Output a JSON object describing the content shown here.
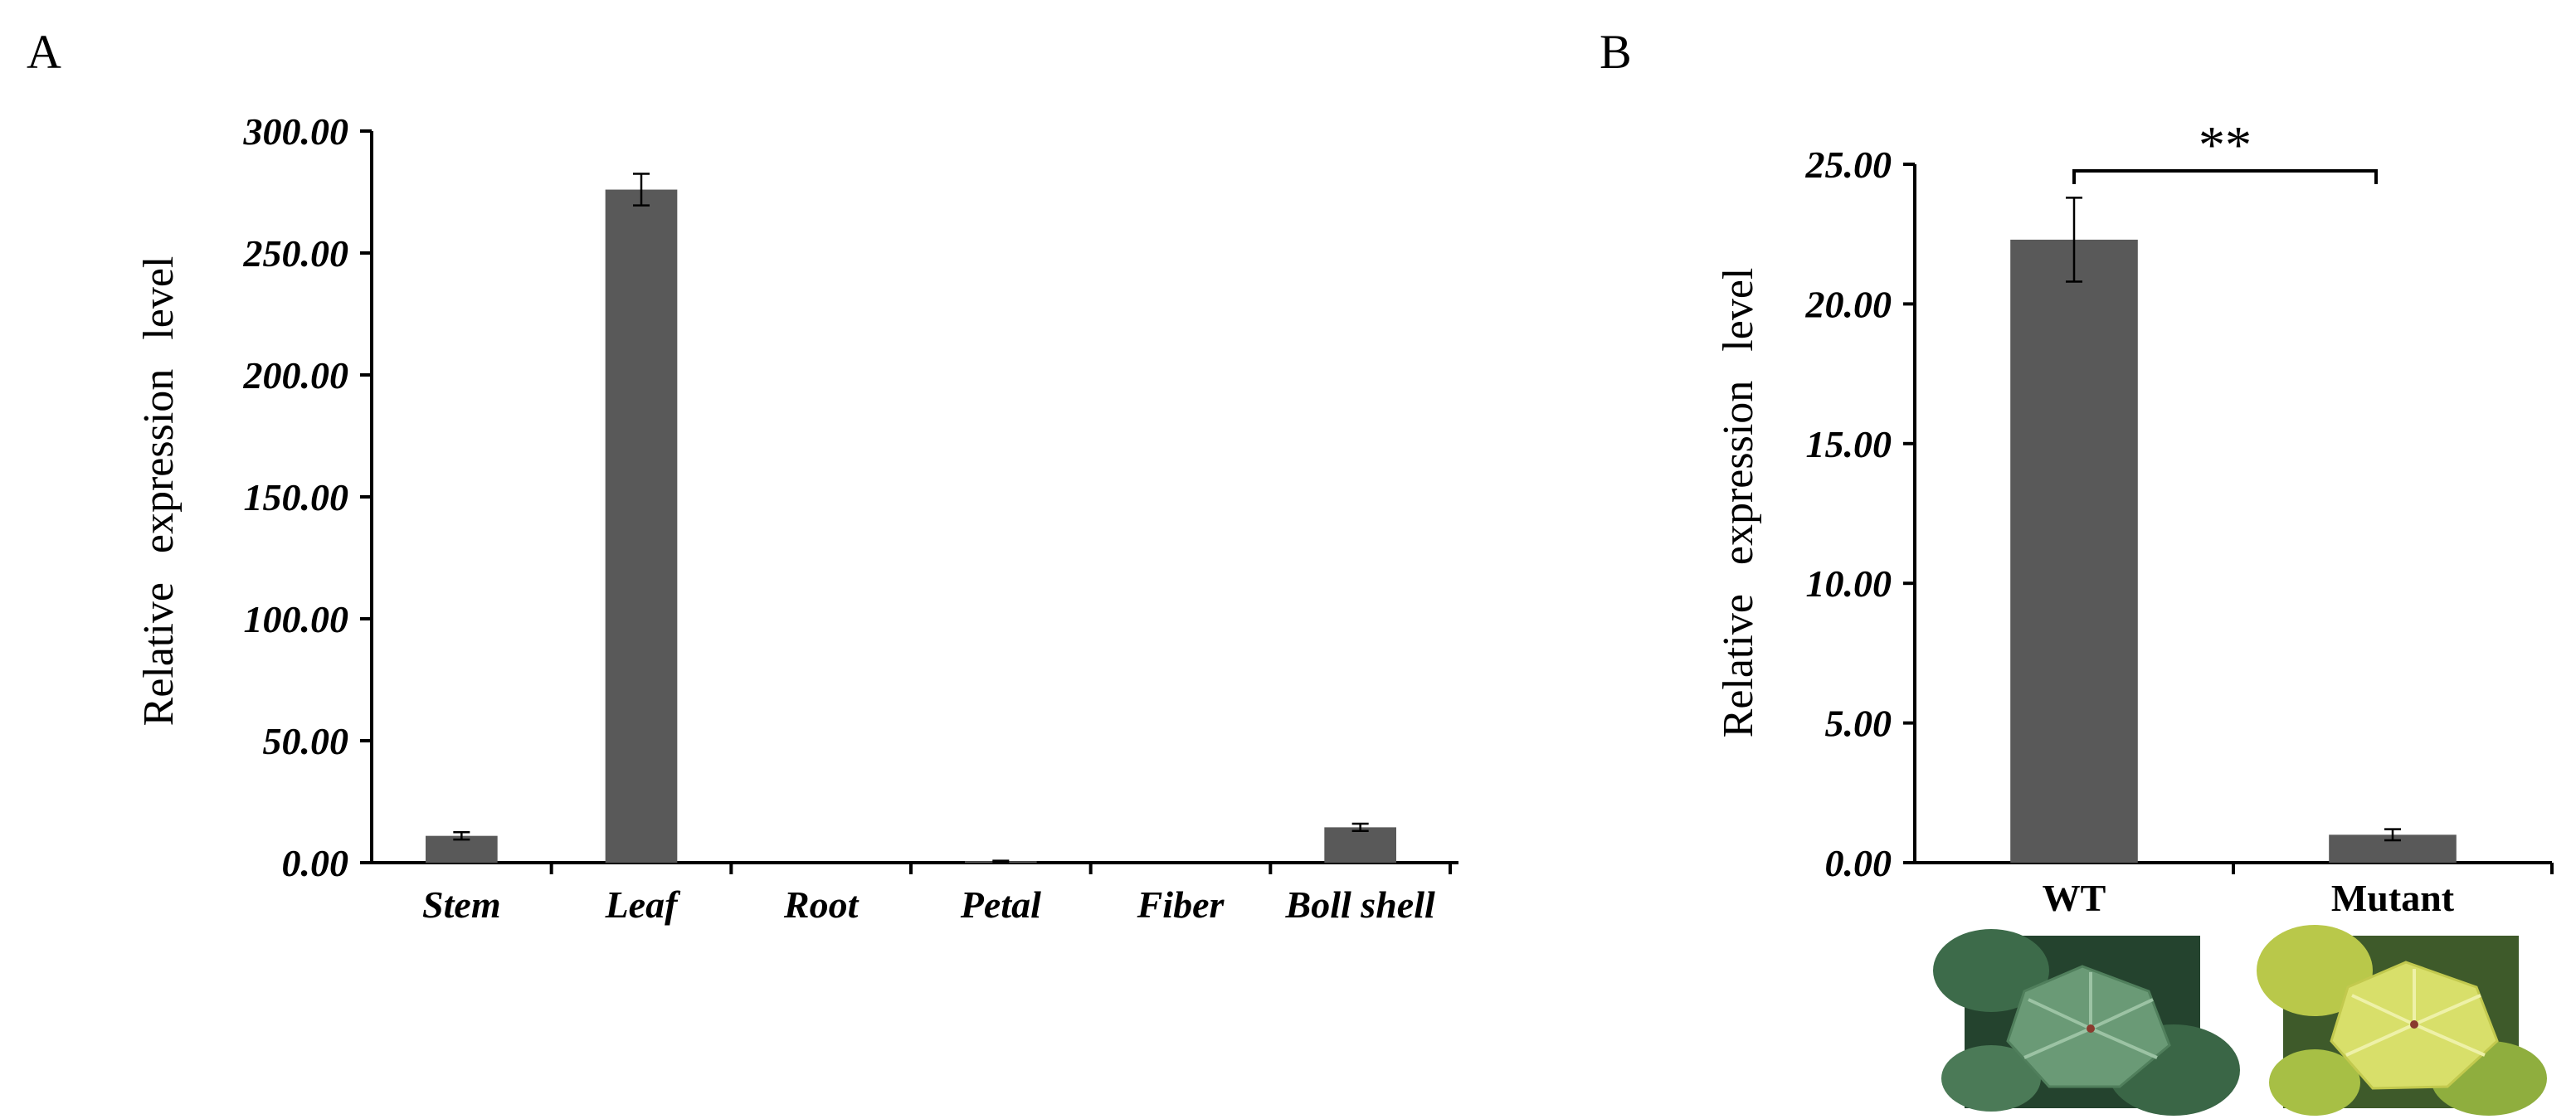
{
  "colors": {
    "bar": "#595959",
    "axis": "#000000",
    "text": "#000000",
    "leaf_green_dark": "#2f5f3c",
    "leaf_green_mid": "#5f8f6a",
    "leaf_yellow": "#c9d34a",
    "leaf_yellow_light": "#e4e887",
    "background": "#ffffff"
  },
  "chart_data": [
    {
      "panel_label": "A",
      "type": "bar",
      "categories": [
        "Stem",
        "Leaf",
        "Root",
        "Petal",
        "Fiber",
        "Boll shell"
      ],
      "values": [
        11,
        276,
        0,
        0.6,
        0,
        14.5
      ],
      "errors": [
        1.5,
        6.5,
        0,
        0.2,
        0,
        1.5
      ],
      "ylabel": "Relative expression level",
      "ylim": [
        0,
        300
      ],
      "yticks": [
        "0.00",
        "50.00",
        "100.00",
        "150.00",
        "200.00",
        "250.00",
        "300.00"
      ],
      "grid": false,
      "legend": "none"
    },
    {
      "panel_label": "B",
      "type": "bar",
      "categories": [
        "WT",
        "Mutant"
      ],
      "values": [
        22.3,
        1.0
      ],
      "errors": [
        1.5,
        0.2
      ],
      "ylabel": "Relative expression level",
      "ylim": [
        0,
        25
      ],
      "yticks": [
        "0.00",
        "5.00",
        "10.00",
        "15.00",
        "20.00",
        "25.00"
      ],
      "significance": "**",
      "grid": false,
      "legend": "none",
      "photos": [
        "WT leaf photo",
        "Mutant leaf photo"
      ]
    }
  ]
}
